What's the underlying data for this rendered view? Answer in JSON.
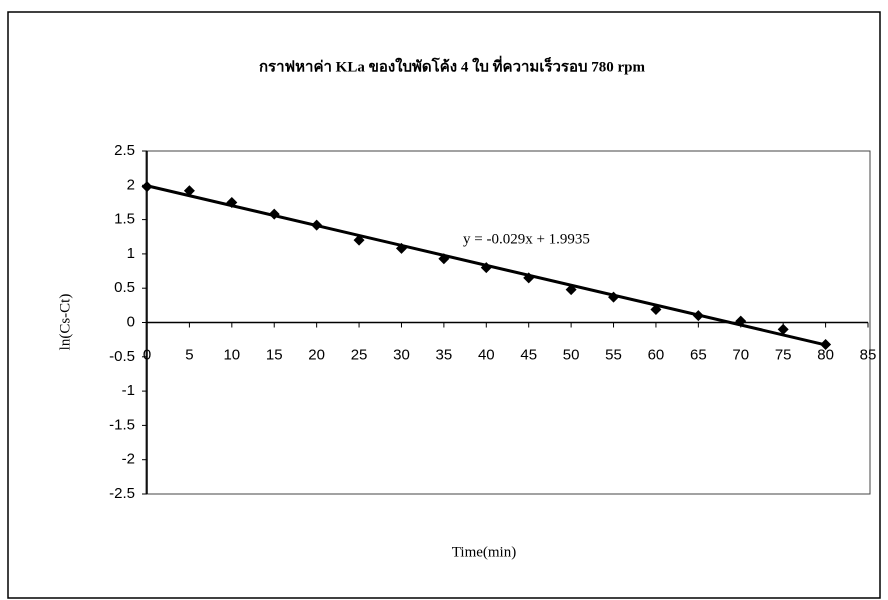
{
  "chart_data": {
    "type": "scatter",
    "title": "กราฟหาค่า KLa ของใบพัดโค้ง 4 ใบ ที่ความเร็วรอบ 780 rpm",
    "x_label": "Time(min)",
    "y_label": "ln(Cs-Ct)",
    "series": [
      {
        "color": "#000000",
        "x": [
          0,
          5,
          10,
          15,
          20,
          25,
          30,
          35,
          40,
          45,
          50,
          55,
          60,
          65,
          70,
          75,
          80
        ],
        "values": [
          1.98,
          1.92,
          1.75,
          1.58,
          1.42,
          1.2,
          1.08,
          0.93,
          0.8,
          0.65,
          0.48,
          0.37,
          0.19,
          0.1,
          0.02,
          -0.1,
          -0.32
        ]
      }
    ],
    "trendline": {
      "label": "y = -0.029x + 1.9935",
      "slope": -0.029,
      "intercept": 1.9935,
      "color": "#000000"
    },
    "xlim": [
      0,
      85
    ],
    "xticks": [
      0,
      5,
      10,
      15,
      20,
      25,
      30,
      35,
      40,
      45,
      50,
      55,
      60,
      65,
      70,
      75,
      80,
      85
    ],
    "ylim": [
      -2.5,
      2.5
    ],
    "yticks": [
      -2.5,
      -2,
      -1.5,
      -1,
      -0.5,
      0,
      0.5,
      1,
      1.5,
      2,
      2.5
    ],
    "grid": false
  }
}
